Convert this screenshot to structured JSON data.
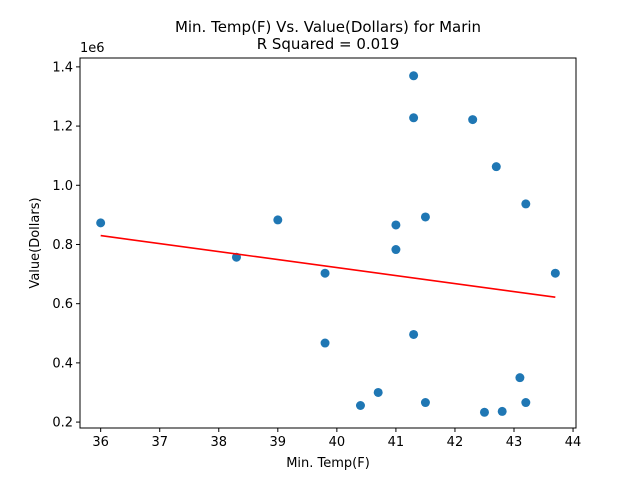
{
  "chart_data": {
    "type": "scatter",
    "title_line1": "Min. Temp(F) Vs. Value(Dollars) for Marin",
    "title_line2": "R Squared =  0.019",
    "xlabel": "Min. Temp(F)",
    "ylabel": "Value(Dollars)",
    "y_offset_label": "1e6",
    "xlim": [
      35.65,
      44.05
    ],
    "ylim": [
      180000,
      1430000
    ],
    "x_ticks": [
      36,
      37,
      38,
      39,
      40,
      41,
      42,
      43,
      44
    ],
    "x_tick_labels": [
      "36",
      "37",
      "38",
      "39",
      "40",
      "41",
      "42",
      "43",
      "44"
    ],
    "y_ticks": [
      200000,
      400000,
      600000,
      800000,
      1000000,
      1200000,
      1400000
    ],
    "y_tick_labels": [
      "0.2",
      "0.4",
      "0.6",
      "0.8",
      "1.0",
      "1.2",
      "1.4"
    ],
    "point_color": "#1f77b4",
    "line_color": "#ff0000",
    "points": [
      {
        "x": 36.0,
        "y": 873000
      },
      {
        "x": 38.3,
        "y": 757000
      },
      {
        "x": 39.0,
        "y": 883000
      },
      {
        "x": 39.8,
        "y": 703000
      },
      {
        "x": 39.8,
        "y": 467000
      },
      {
        "x": 40.4,
        "y": 256000
      },
      {
        "x": 40.7,
        "y": 300000
      },
      {
        "x": 41.0,
        "y": 866000
      },
      {
        "x": 41.0,
        "y": 783000
      },
      {
        "x": 41.3,
        "y": 1370000
      },
      {
        "x": 41.3,
        "y": 1228000
      },
      {
        "x": 41.3,
        "y": 496000
      },
      {
        "x": 41.5,
        "y": 893000
      },
      {
        "x": 41.5,
        "y": 266000
      },
      {
        "x": 42.3,
        "y": 1222000
      },
      {
        "x": 42.5,
        "y": 233000
      },
      {
        "x": 42.7,
        "y": 1063000
      },
      {
        "x": 42.8,
        "y": 236000
      },
      {
        "x": 43.1,
        "y": 350000
      },
      {
        "x": 43.2,
        "y": 937000
      },
      {
        "x": 43.2,
        "y": 266000
      },
      {
        "x": 43.7,
        "y": 703000
      }
    ],
    "fit_line": [
      {
        "x": 36.0,
        "y": 830000
      },
      {
        "x": 43.7,
        "y": 622000
      }
    ]
  }
}
